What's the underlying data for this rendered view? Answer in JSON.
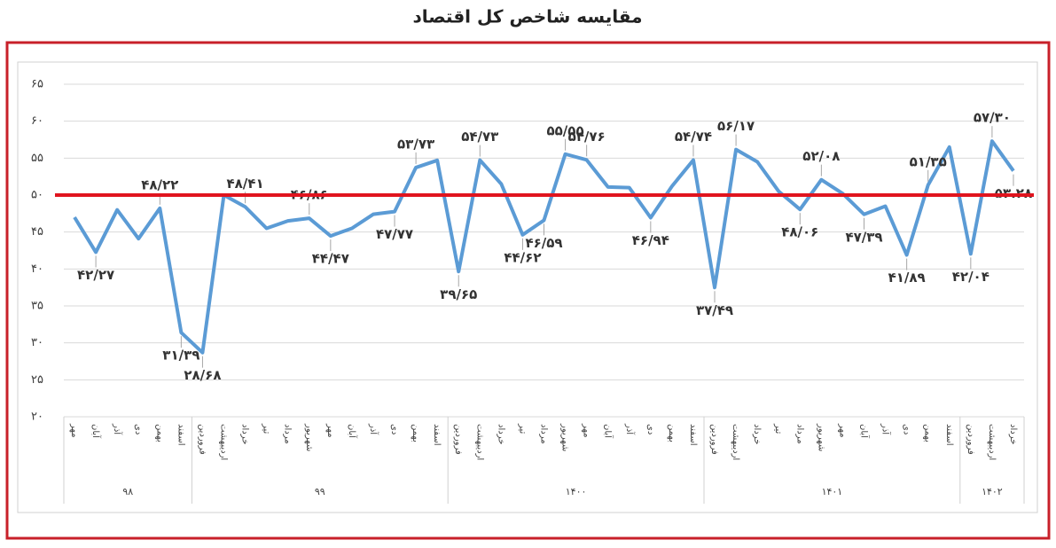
{
  "chart_data": {
    "type": "line",
    "title": "مقایسه شاخص کل اقتصاد",
    "groups": [
      {
        "name": "۹۸",
        "categories": [
          "مهر",
          "آبان",
          "آذر",
          "دی",
          "بهمن",
          "اسفند"
        ]
      },
      {
        "name": "۹۹",
        "categories": [
          "فروردین",
          "اردیبهشت",
          "خرداد",
          "تیر",
          "مرداد",
          "شهریور",
          "مهر",
          "آبان",
          "آذر",
          "دی",
          "بهمن",
          "اسفند"
        ]
      },
      {
        "name": "۱۴۰۰",
        "categories": [
          "فروردین",
          "اردیبهشت",
          "خرداد",
          "تیر",
          "مرداد",
          "شهریور",
          "مهر",
          "آبان",
          "آذر",
          "دی",
          "بهمن",
          "اسفند"
        ]
      },
      {
        "name": "۱۴۰۱",
        "categories": [
          "فروردین",
          "اردیبهشت",
          "خرداد",
          "تیر",
          "مرداد",
          "شهریور",
          "مهر",
          "آبان",
          "آذر",
          "دی",
          "بهمن",
          "اسفند"
        ]
      },
      {
        "name": "۱۴۰۲",
        "categories": [
          "فروردین",
          "اردیبهشت",
          "خرداد"
        ]
      }
    ],
    "values": [
      47,
      42.27,
      48,
      44.1,
      48.22,
      31.39,
      28.68,
      50,
      48.41,
      45.5,
      46.5,
      46.86,
      44.47,
      45.5,
      47.4,
      47.77,
      53.73,
      54.7,
      39.65,
      54.73,
      51.5,
      44.62,
      46.59,
      55.55,
      54.76,
      51.1,
      51,
      46.94,
      51.2,
      54.74,
      37.49,
      56.17,
      54.5,
      50.5,
      48.06,
      52.08,
      50.2,
      47.39,
      48.5,
      41.89,
      51.35,
      56.5,
      42.04,
      57.3,
      53.28
    ],
    "value_labels": [
      null,
      "۴۲/۲۷",
      null,
      null,
      "۴۸/۲۲",
      "۳۱/۳۹",
      "۲۸/۶۸",
      null,
      "۴۸/۴۱",
      null,
      null,
      "۴۶/۸۶",
      "۴۴/۴۷",
      null,
      null,
      "۴۷/۷۷",
      "۵۳/۷۳",
      null,
      "۳۹/۶۵",
      "۵۴/۷۳",
      null,
      "۴۴/۶۲",
      "۴۶/۵۹",
      "۵۵/۵۵",
      "۵۴/۷۶",
      null,
      null,
      "۴۶/۹۴",
      null,
      "۵۴/۷۴",
      "۳۷/۴۹",
      "۵۶/۱۷",
      null,
      null,
      "۴۸/۰۶",
      "۵۲/۰۸",
      null,
      "۴۷/۳۹",
      null,
      "۴۱/۸۹",
      "۵۱/۳۵",
      null,
      "۴۲/۰۴",
      "۵۷/۳۰",
      "۵۳.۲۸"
    ],
    "color": "#5b9bd5",
    "reference_line": {
      "value": 50,
      "color": "#e0141e"
    },
    "ylim": [
      20,
      65
    ],
    "yticks": [
      {
        "value": 20,
        "label": "۲۰"
      },
      {
        "value": 25,
        "label": "۲۵"
      },
      {
        "value": 30,
        "label": "۳۰"
      },
      {
        "value": 35,
        "label": "۳۵"
      },
      {
        "value": 40,
        "label": "۴۰"
      },
      {
        "value": 45,
        "label": "۴۵"
      },
      {
        "value": 50,
        "label": "۵۰"
      },
      {
        "value": 55,
        "label": "۵۵"
      },
      {
        "value": 60,
        "label": "۶۰"
      },
      {
        "value": 65,
        "label": "۶۵"
      }
    ],
    "grid": true
  }
}
